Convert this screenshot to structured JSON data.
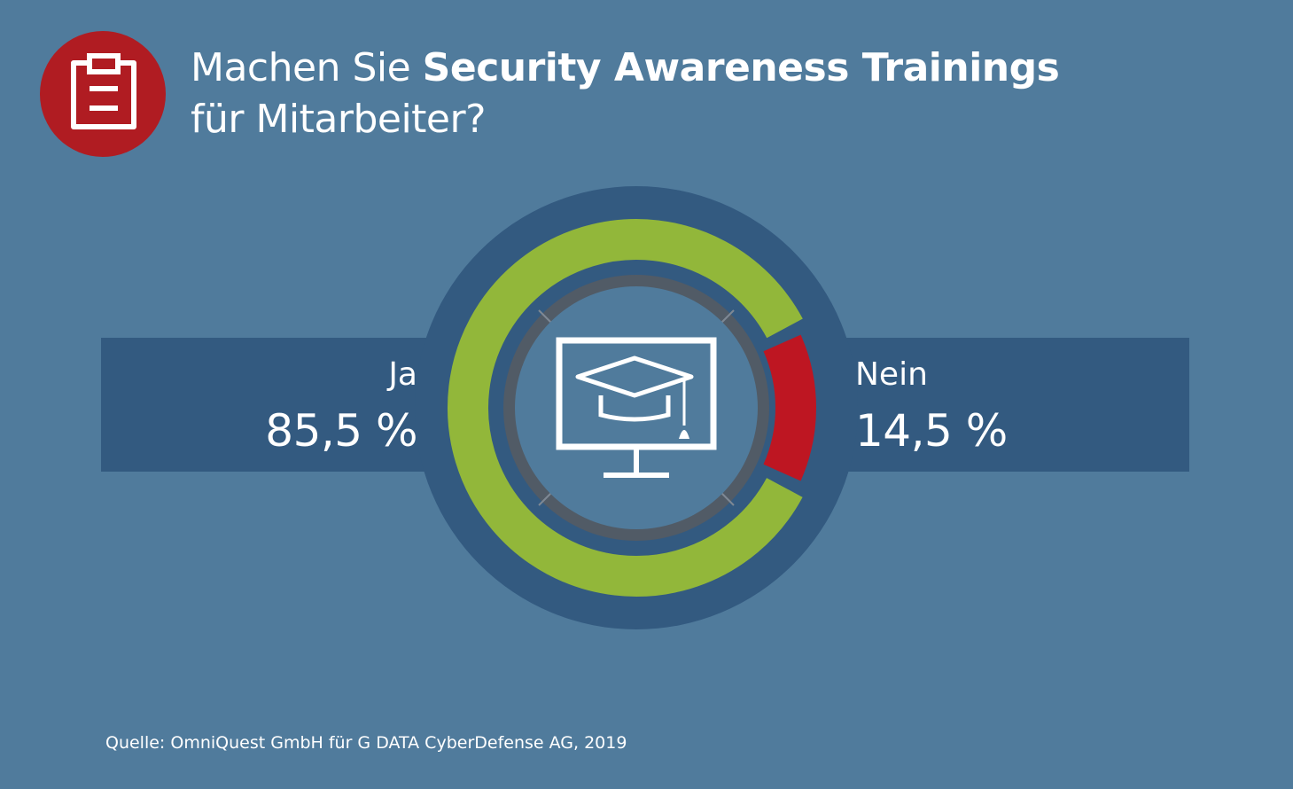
{
  "header": {
    "title_regular": "Machen Sie ",
    "title_bold": "Security Awareness Trainings",
    "title_line2": "für Mitarbeiter?",
    "badge_icon": "clipboard-icon",
    "badge_color": "#b01c22"
  },
  "center_icon": "monitor-graduation-cap-icon",
  "colors": {
    "background": "#507b9c",
    "band": "#335a80",
    "ja": "#92b73a",
    "nein": "#be1622",
    "inner_ring": "#515b66"
  },
  "chart_data": {
    "type": "pie",
    "categories": [
      "Ja",
      "Nein"
    ],
    "values": [
      85.5,
      14.5
    ],
    "value_labels": [
      "85,5 %",
      "14,5 %"
    ],
    "title": "Machen Sie Security Awareness Trainings für Mitarbeiter?"
  },
  "source": "Quelle: OmniQuest GmbH für G DATA CyberDefense AG, 2019"
}
